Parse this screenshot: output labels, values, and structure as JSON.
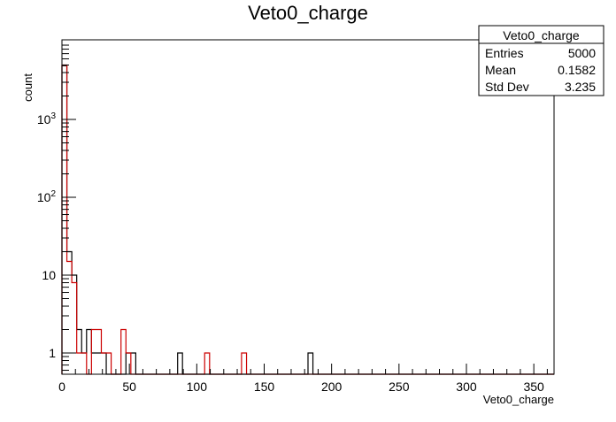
{
  "chart_data": {
    "type": "histogram",
    "title": "Veto0_charge",
    "xlabel": "Veto0_charge",
    "ylabel": "count",
    "xlim": [
      0,
      365
    ],
    "ylim": [
      0.5,
      10000
    ],
    "y_scale": "log",
    "grid": false,
    "bin_width": 3.65,
    "x_ticks": [
      0,
      50,
      100,
      150,
      200,
      250,
      300,
      350
    ],
    "x_tick_labels": [
      "0",
      "50",
      "100",
      "150",
      "200",
      "250",
      "300",
      "350"
    ],
    "y_ticks": [
      1,
      10,
      100,
      1000
    ],
    "y_tick_labels": [
      "1",
      "10",
      "10²",
      "10³"
    ],
    "series": [
      {
        "color": "#000000",
        "bins": [
          {
            "x0": 0.0,
            "x1": 3.65,
            "y": 4900
          },
          {
            "x0": 3.65,
            "x1": 7.3,
            "y": 20
          },
          {
            "x0": 7.3,
            "x1": 10.95,
            "y": 10
          },
          {
            "x0": 10.95,
            "x1": 14.6,
            "y": 2
          },
          {
            "x0": 14.6,
            "x1": 18.25,
            "y": 1
          },
          {
            "x0": 18.25,
            "x1": 21.9,
            "y": 2
          },
          {
            "x0": 21.9,
            "x1": 25.55,
            "y": 1
          },
          {
            "x0": 25.55,
            "x1": 29.2,
            "y": 1
          },
          {
            "x0": 29.2,
            "x1": 32.85,
            "y": 1
          },
          {
            "x0": 47.45,
            "x1": 51.1,
            "y": 1
          },
          {
            "x0": 51.1,
            "x1": 54.75,
            "y": 1
          },
          {
            "x0": 85.8,
            "x1": 89.4,
            "y": 1
          },
          {
            "x0": 182.5,
            "x1": 186.15,
            "y": 1
          }
        ]
      },
      {
        "color": "#cc0000",
        "bins": [
          {
            "x0": 0.0,
            "x1": 3.65,
            "y": 5000
          },
          {
            "x0": 3.65,
            "x1": 7.3,
            "y": 15
          },
          {
            "x0": 7.3,
            "x1": 10.95,
            "y": 8
          },
          {
            "x0": 10.95,
            "x1": 14.6,
            "y": 1
          },
          {
            "x0": 14.6,
            "x1": 18.25,
            "y": 1
          },
          {
            "x0": 21.9,
            "x1": 25.55,
            "y": 2
          },
          {
            "x0": 25.55,
            "x1": 29.2,
            "y": 2
          },
          {
            "x0": 29.2,
            "x1": 32.85,
            "y": 1
          },
          {
            "x0": 32.85,
            "x1": 36.5,
            "y": 1
          },
          {
            "x0": 43.8,
            "x1": 47.45,
            "y": 2
          },
          {
            "x0": 47.45,
            "x1": 51.1,
            "y": 1
          },
          {
            "x0": 105.85,
            "x1": 109.5,
            "y": 1
          },
          {
            "x0": 133.2,
            "x1": 136.9,
            "y": 1
          }
        ]
      }
    ],
    "stats_box": {
      "title": "Veto0_charge",
      "position": "top-right",
      "rows": [
        {
          "label": "Entries",
          "value": "5000"
        },
        {
          "label": "Mean",
          "value": "0.1582"
        },
        {
          "label": "Std Dev",
          "value": "3.235"
        }
      ]
    }
  }
}
